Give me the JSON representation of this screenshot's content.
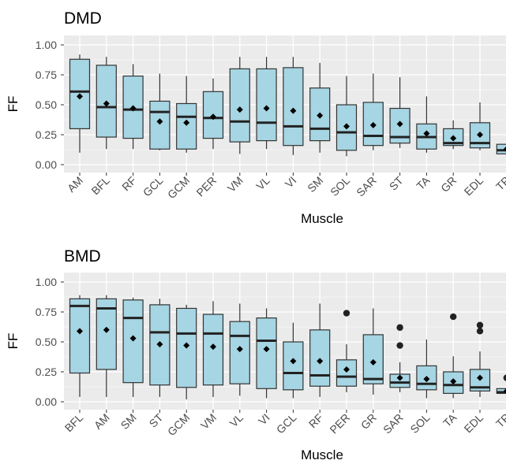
{
  "chart_data": [
    {
      "type": "boxplot",
      "title": "DMD",
      "xlabel": "Muscle",
      "ylabel": "FF",
      "ylim": [
        0,
        1.0
      ],
      "yticks": [
        "0.00",
        "0.25",
        "0.50",
        "0.75",
        "1.00"
      ],
      "grid": true,
      "colors": {
        "box_fill": "#a6d5e3",
        "panel_bg": "#ebebeb",
        "grid": "#ffffff",
        "line": "#333333"
      },
      "categories": [
        "AM",
        "BFL",
        "RF",
        "GCL",
        "GCM",
        "PER",
        "VM",
        "VL",
        "VI",
        "SM",
        "SOL",
        "SAR",
        "ST",
        "TA",
        "GR",
        "EDL",
        "TP"
      ],
      "boxes": [
        {
          "min": 0.1,
          "q1": 0.3,
          "median": 0.61,
          "q3": 0.88,
          "max": 0.92,
          "mean": 0.57,
          "outliers": []
        },
        {
          "min": 0.13,
          "q1": 0.23,
          "median": 0.48,
          "q3": 0.83,
          "max": 0.9,
          "mean": 0.51,
          "outliers": []
        },
        {
          "min": 0.13,
          "q1": 0.22,
          "median": 0.46,
          "q3": 0.74,
          "max": 0.84,
          "mean": 0.47,
          "outliers": []
        },
        {
          "min": 0.12,
          "q1": 0.13,
          "median": 0.44,
          "q3": 0.53,
          "max": 0.76,
          "mean": 0.36,
          "outliers": []
        },
        {
          "min": 0.1,
          "q1": 0.13,
          "median": 0.4,
          "q3": 0.51,
          "max": 0.74,
          "mean": 0.35,
          "outliers": []
        },
        {
          "min": 0.13,
          "q1": 0.22,
          "median": 0.39,
          "q3": 0.61,
          "max": 0.72,
          "mean": 0.4,
          "outliers": []
        },
        {
          "min": 0.09,
          "q1": 0.19,
          "median": 0.36,
          "q3": 0.8,
          "max": 0.9,
          "mean": 0.46,
          "outliers": []
        },
        {
          "min": 0.13,
          "q1": 0.2,
          "median": 0.35,
          "q3": 0.8,
          "max": 0.9,
          "mean": 0.47,
          "outliers": []
        },
        {
          "min": 0.08,
          "q1": 0.16,
          "median": 0.32,
          "q3": 0.81,
          "max": 0.9,
          "mean": 0.45,
          "outliers": []
        },
        {
          "min": 0.1,
          "q1": 0.2,
          "median": 0.3,
          "q3": 0.64,
          "max": 0.85,
          "mean": 0.41,
          "outliers": []
        },
        {
          "min": 0.07,
          "q1": 0.12,
          "median": 0.27,
          "q3": 0.5,
          "max": 0.74,
          "mean": 0.32,
          "outliers": []
        },
        {
          "min": 0.12,
          "q1": 0.16,
          "median": 0.24,
          "q3": 0.52,
          "max": 0.76,
          "mean": 0.33,
          "outliers": []
        },
        {
          "min": 0.14,
          "q1": 0.18,
          "median": 0.23,
          "q3": 0.47,
          "max": 0.73,
          "mean": 0.34,
          "outliers": []
        },
        {
          "min": 0.1,
          "q1": 0.13,
          "median": 0.23,
          "q3": 0.34,
          "max": 0.57,
          "mean": 0.26,
          "outliers": []
        },
        {
          "min": 0.13,
          "q1": 0.16,
          "median": 0.18,
          "q3": 0.3,
          "max": 0.37,
          "mean": 0.22,
          "outliers": []
        },
        {
          "min": 0.12,
          "q1": 0.14,
          "median": 0.18,
          "q3": 0.35,
          "max": 0.52,
          "mean": 0.25,
          "outliers": []
        },
        {
          "min": 0.06,
          "q1": 0.09,
          "median": 0.12,
          "q3": 0.17,
          "max": 0.26,
          "mean": 0.13,
          "outliers": []
        }
      ]
    },
    {
      "type": "boxplot",
      "title": "BMD",
      "xlabel": "Muscle",
      "ylabel": "FF",
      "ylim": [
        0,
        1.0
      ],
      "yticks": [
        "0.00",
        "0.25",
        "0.50",
        "0.75",
        "1.00"
      ],
      "grid": true,
      "colors": {
        "box_fill": "#a6d5e3",
        "panel_bg": "#ebebeb",
        "grid": "#ffffff",
        "line": "#333333"
      },
      "categories": [
        "BFL",
        "AM",
        "SM",
        "ST",
        "GCM",
        "VM",
        "VL",
        "VI",
        "GCL",
        "RF",
        "PER",
        "GR",
        "SAR",
        "SOL",
        "TA",
        "EDL",
        "TP"
      ],
      "boxes": [
        {
          "min": 0.04,
          "q1": 0.24,
          "median": 0.8,
          "q3": 0.86,
          "max": 0.89,
          "mean": 0.59,
          "outliers": []
        },
        {
          "min": 0.04,
          "q1": 0.27,
          "median": 0.78,
          "q3": 0.86,
          "max": 0.89,
          "mean": 0.6,
          "outliers": []
        },
        {
          "min": 0.04,
          "q1": 0.16,
          "median": 0.7,
          "q3": 0.85,
          "max": 0.87,
          "mean": 0.53,
          "outliers": []
        },
        {
          "min": 0.04,
          "q1": 0.14,
          "median": 0.58,
          "q3": 0.81,
          "max": 0.86,
          "mean": 0.48,
          "outliers": []
        },
        {
          "min": 0.02,
          "q1": 0.12,
          "median": 0.57,
          "q3": 0.78,
          "max": 0.81,
          "mean": 0.47,
          "outliers": []
        },
        {
          "min": 0.04,
          "q1": 0.14,
          "median": 0.57,
          "q3": 0.73,
          "max": 0.84,
          "mean": 0.46,
          "outliers": []
        },
        {
          "min": 0.05,
          "q1": 0.15,
          "median": 0.55,
          "q3": 0.67,
          "max": 0.82,
          "mean": 0.44,
          "outliers": []
        },
        {
          "min": 0.03,
          "q1": 0.11,
          "median": 0.51,
          "q3": 0.7,
          "max": 0.78,
          "mean": 0.44,
          "outliers": []
        },
        {
          "min": 0.03,
          "q1": 0.1,
          "median": 0.24,
          "q3": 0.5,
          "max": 0.66,
          "mean": 0.34,
          "outliers": []
        },
        {
          "min": 0.04,
          "q1": 0.13,
          "median": 0.22,
          "q3": 0.6,
          "max": 0.82,
          "mean": 0.34,
          "outliers": []
        },
        {
          "min": 0.08,
          "q1": 0.13,
          "median": 0.21,
          "q3": 0.35,
          "max": 0.48,
          "mean": 0.27,
          "outliers": [
            0.74
          ]
        },
        {
          "min": 0.06,
          "q1": 0.15,
          "median": 0.19,
          "q3": 0.56,
          "max": 0.78,
          "mean": 0.33,
          "outliers": []
        },
        {
          "min": 0.08,
          "q1": 0.12,
          "median": 0.16,
          "q3": 0.23,
          "max": 0.33,
          "mean": 0.2,
          "outliers": [
            0.47,
            0.62
          ]
        },
        {
          "min": 0.03,
          "q1": 0.1,
          "median": 0.15,
          "q3": 0.3,
          "max": 0.52,
          "mean": 0.19,
          "outliers": []
        },
        {
          "min": 0.03,
          "q1": 0.07,
          "median": 0.14,
          "q3": 0.25,
          "max": 0.38,
          "mean": 0.17,
          "outliers": [
            0.71
          ]
        },
        {
          "min": 0.04,
          "q1": 0.09,
          "median": 0.12,
          "q3": 0.27,
          "max": 0.42,
          "mean": 0.2,
          "outliers": [
            0.59,
            0.64
          ]
        },
        {
          "min": 0.06,
          "q1": 0.07,
          "median": 0.08,
          "q3": 0.11,
          "max": 0.13,
          "mean": 0.09,
          "outliers": [
            0.2
          ]
        }
      ]
    }
  ]
}
